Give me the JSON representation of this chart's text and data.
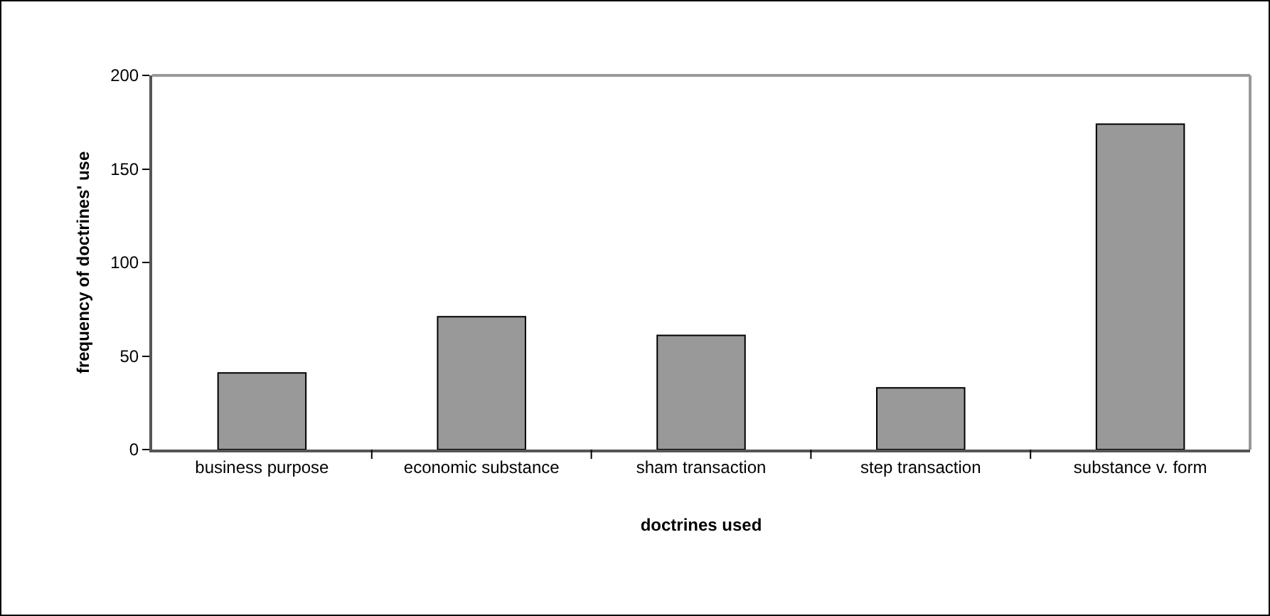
{
  "chart_data": {
    "type": "bar",
    "xlabel": "doctrines used",
    "ylabel": "frequency of doctrines' use",
    "categories": [
      "business purpose",
      "economic substance",
      "sham transaction",
      "step transaction",
      "substance v. form"
    ],
    "values": [
      41,
      71,
      61,
      33,
      174
    ],
    "color": "#999999",
    "ylim": [
      0,
      200
    ],
    "yticks": [
      0,
      50,
      100,
      150,
      200
    ],
    "grid": false,
    "legend": false
  }
}
